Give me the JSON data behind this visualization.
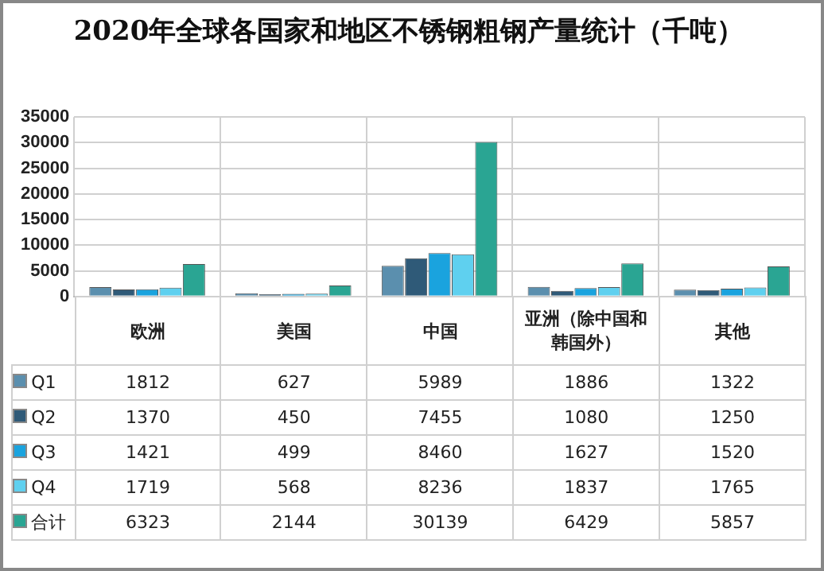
{
  "chart_data": {
    "type": "bar",
    "title": "2020年全球各国家和地区不锈钢粗钢产量统计（千吨）",
    "categories": [
      "欧洲",
      "美国",
      "中国",
      "亚洲（除中国和韩国外）",
      "其他"
    ],
    "series": [
      {
        "name": "Q1",
        "color": "#5b8fae",
        "values": [
          1812,
          627,
          5989,
          1886,
          1322
        ]
      },
      {
        "name": "Q2",
        "color": "#2f5a78",
        "values": [
          1370,
          450,
          7455,
          1080,
          1250
        ]
      },
      {
        "name": "Q3",
        "color": "#1aa3de",
        "values": [
          1421,
          499,
          8460,
          1627,
          1520
        ]
      },
      {
        "name": "Q4",
        "color": "#5fd0ef",
        "values": [
          1719,
          568,
          8236,
          1837,
          1765
        ]
      },
      {
        "name": "合计",
        "color": "#2aa593",
        "values": [
          6323,
          2144,
          30139,
          6429,
          5857
        ]
      }
    ],
    "ylim": [
      0,
      35000
    ],
    "yticks": [
      0,
      5000,
      10000,
      15000,
      20000,
      25000,
      30000,
      35000
    ],
    "grid": true,
    "legend": "bottom",
    "data_labels": true
  }
}
